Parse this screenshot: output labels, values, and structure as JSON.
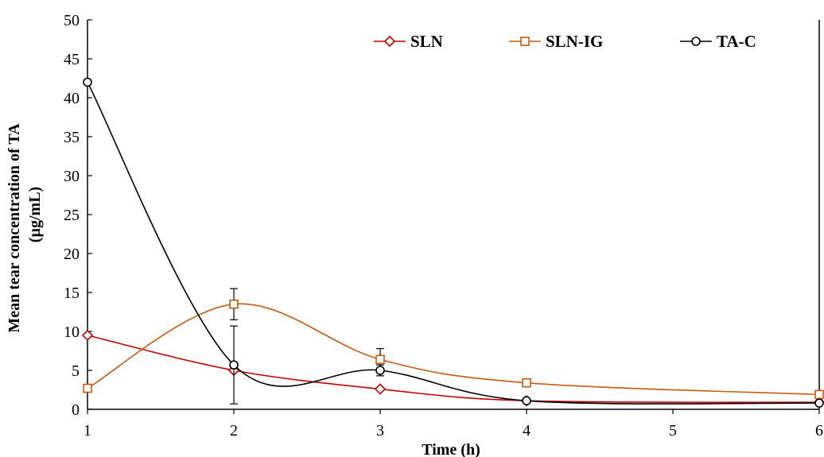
{
  "chart_data": {
    "type": "line",
    "xlabel": "Time (h)",
    "ylabel_line1": "Mean tear concentration  of TA",
    "ylabel_line2": "(µg/mL)",
    "xlim": [
      1,
      6
    ],
    "ylim": [
      0,
      50
    ],
    "x_ticks": [
      "1",
      "2",
      "3",
      "4",
      "5",
      "6"
    ],
    "y_ticks": [
      "0",
      "5",
      "10",
      "15",
      "20",
      "25",
      "30",
      "35",
      "40",
      "45",
      "50"
    ],
    "legend_position": "top-right",
    "series": [
      {
        "name": "SLN",
        "marker": "diamond",
        "color": "#c00000",
        "x": [
          1,
          2,
          3,
          4,
          6
        ],
        "y": [
          9.5,
          5.0,
          2.6,
          1.1,
          0.9
        ],
        "error": [
          0,
          0,
          0,
          0,
          0
        ]
      },
      {
        "name": "SLN-IG",
        "marker": "square",
        "color": "#c55a11",
        "x": [
          1,
          2,
          3,
          4,
          6
        ],
        "y": [
          2.7,
          13.5,
          6.4,
          3.4,
          1.9
        ],
        "error": [
          0,
          2.0,
          1.4,
          0,
          0
        ]
      },
      {
        "name": "TA-C",
        "marker": "circle",
        "color": "#000000",
        "x": [
          1,
          2,
          3,
          4,
          6
        ],
        "y": [
          42.0,
          5.7,
          5.0,
          1.1,
          0.8
        ],
        "error": [
          0,
          5.0,
          0.7,
          0,
          0
        ]
      }
    ]
  }
}
